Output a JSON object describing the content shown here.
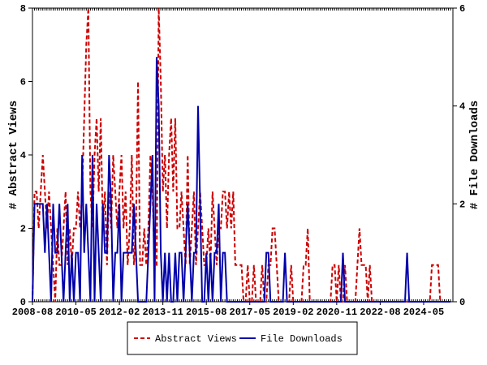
{
  "chart_data": {
    "type": "line",
    "y_label": "# Abstract Views",
    "y2_label": "# File Downloads",
    "categories": [
      "2008-08",
      "2008-09",
      "2008-10",
      "2008-11",
      "2008-12",
      "2009-01",
      "2009-02",
      "2009-03",
      "2009-04",
      "2009-05",
      "2009-06",
      "2009-07",
      "2009-08",
      "2009-09",
      "2009-10",
      "2009-11",
      "2009-12",
      "2010-01",
      "2010-02",
      "2010-03",
      "2010-04",
      "2010-05",
      "2010-06",
      "2010-07",
      "2010-08",
      "2010-09",
      "2010-10",
      "2010-11",
      "2010-12",
      "2011-01",
      "2011-02",
      "2011-03",
      "2011-04",
      "2011-05",
      "2011-06",
      "2011-07",
      "2011-08",
      "2011-09",
      "2011-10",
      "2011-11",
      "2011-12",
      "2012-01",
      "2012-02",
      "2012-03",
      "2012-04",
      "2012-05",
      "2012-06",
      "2012-07",
      "2012-08",
      "2012-09",
      "2012-10",
      "2012-11",
      "2012-12",
      "2013-01",
      "2013-02",
      "2013-03",
      "2013-04",
      "2013-05",
      "2013-06",
      "2013-07",
      "2013-08",
      "2013-09",
      "2013-10",
      "2013-11",
      "2013-12",
      "2014-01",
      "2014-02",
      "2014-03",
      "2014-04",
      "2014-05",
      "2014-06",
      "2014-07",
      "2014-08",
      "2014-09",
      "2014-10",
      "2014-11",
      "2014-12",
      "2015-01",
      "2015-02",
      "2015-03",
      "2015-04",
      "2015-05",
      "2015-06",
      "2015-07",
      "2015-08",
      "2015-09",
      "2015-10",
      "2015-11",
      "2015-12",
      "2016-01",
      "2016-02",
      "2016-03",
      "2016-04",
      "2016-05",
      "2016-06",
      "2016-07",
      "2016-08",
      "2016-09",
      "2016-10",
      "2016-11",
      "2016-12",
      "2017-01",
      "2017-02",
      "2017-03",
      "2017-04",
      "2017-05",
      "2017-06",
      "2017-07",
      "2017-08",
      "2017-09",
      "2017-10",
      "2017-11",
      "2017-12",
      "2018-01",
      "2018-02",
      "2018-03",
      "2018-04",
      "2018-05",
      "2018-06",
      "2018-07",
      "2018-08",
      "2018-09",
      "2018-10",
      "2018-11",
      "2018-12",
      "2019-01",
      "2019-02",
      "2019-03",
      "2019-04",
      "2019-05",
      "2019-06",
      "2019-07",
      "2019-08",
      "2019-09",
      "2019-10",
      "2019-11",
      "2019-12",
      "2020-01",
      "2020-02",
      "2020-03",
      "2020-04",
      "2020-05",
      "2020-06",
      "2020-07",
      "2020-08",
      "2020-09",
      "2020-10",
      "2020-11",
      "2020-12",
      "2021-01",
      "2021-02",
      "2021-03",
      "2021-04",
      "2021-05",
      "2021-06",
      "2021-07",
      "2021-08",
      "2021-09",
      "2021-10",
      "2021-11",
      "2021-12",
      "2022-01",
      "2022-02",
      "2022-03",
      "2022-04",
      "2022-05",
      "2022-06",
      "2022-07",
      "2022-08",
      "2022-09",
      "2022-10",
      "2022-11",
      "2022-12",
      "2023-01",
      "2023-02",
      "2023-03",
      "2023-04",
      "2023-05",
      "2023-06",
      "2023-07",
      "2023-08",
      "2023-09",
      "2023-10",
      "2023-11",
      "2023-12",
      "2024-01",
      "2024-02",
      "2024-03",
      "2024-04",
      "2024-05",
      "2024-06",
      "2024-07",
      "2024-08",
      "2024-09",
      "2024-10",
      "2024-11",
      "2024-12",
      "2025-01",
      "2025-02",
      "2025-03",
      "2025-04",
      "2025-05",
      "2025-06"
    ],
    "xticks": [
      "2008-08",
      "2010-05",
      "2012-02",
      "2013-11",
      "2015-08",
      "2017-05",
      "2019-02",
      "2020-11",
      "2022-08",
      "2024-05"
    ],
    "ylim": [
      0,
      8
    ],
    "yticks": [
      0,
      2,
      4,
      6,
      8
    ],
    "y2lim": [
      0,
      6
    ],
    "y2ticks": [
      0,
      2,
      4,
      6
    ],
    "legend": "bottom",
    "series": [
      {
        "name": "Abstract Views",
        "color": "#cc0000",
        "dash": true,
        "values": [
          0,
          3,
          3,
          2,
          3,
          4,
          3,
          2,
          3,
          2,
          1,
          0,
          2,
          1,
          1,
          2,
          3,
          1,
          2,
          1,
          2,
          2,
          3,
          2,
          3,
          5,
          7,
          8,
          3,
          2,
          4,
          5,
          3,
          5,
          2,
          3,
          1,
          3,
          2,
          4,
          3,
          2,
          3,
          4,
          2,
          3,
          1,
          2,
          4,
          1,
          2,
          6,
          1,
          1,
          2,
          1,
          2,
          4,
          3,
          1,
          1,
          8,
          6,
          3,
          4,
          2,
          4,
          5,
          3,
          5,
          2,
          2,
          3,
          2,
          1,
          4,
          1,
          2,
          3,
          1,
          2,
          3,
          2,
          1,
          1,
          2,
          1,
          3,
          2,
          1,
          2,
          2,
          3,
          3,
          2,
          3,
          2,
          3,
          1,
          1,
          1,
          1,
          0,
          0,
          1,
          0,
          0,
          1,
          0,
          0,
          0,
          1,
          0,
          0,
          1,
          1,
          2,
          2,
          1,
          0,
          0,
          0,
          0,
          0,
          0,
          1,
          0,
          0,
          0,
          0,
          0,
          1,
          1,
          2,
          0,
          0,
          0,
          0,
          0,
          0,
          0,
          0,
          0,
          0,
          0,
          1,
          1,
          0,
          1,
          0,
          0,
          1,
          0,
          0,
          0,
          0,
          0,
          1,
          2,
          1,
          1,
          1,
          0,
          1,
          0,
          0,
          0,
          0,
          0,
          0,
          0,
          0,
          0,
          0,
          0,
          0,
          0,
          0,
          0,
          0,
          0,
          0,
          0,
          0,
          0,
          0,
          0,
          0,
          0,
          0,
          0,
          0,
          0,
          1,
          1,
          1,
          1,
          0,
          0,
          0,
          0,
          0,
          0
        ]
      },
      {
        "name": "File Downloads",
        "color": "#0000aa",
        "dash": false,
        "axis": "y2",
        "values": [
          0,
          2,
          2,
          2,
          2,
          2,
          1,
          2,
          1,
          0,
          2,
          1,
          1,
          2,
          1,
          0,
          1,
          2,
          0,
          1,
          0,
          1,
          1,
          0,
          3,
          1,
          2,
          1,
          0,
          3,
          0,
          2,
          1,
          0,
          2,
          1,
          1,
          3,
          2,
          0,
          1,
          1,
          2,
          0,
          1,
          1,
          1,
          1,
          1,
          2,
          1,
          0,
          0,
          0,
          0,
          0,
          1,
          2,
          3,
          0,
          5,
          4,
          1,
          0,
          1,
          0,
          1,
          0,
          0,
          1,
          0,
          1,
          1,
          0,
          1,
          2,
          1,
          0,
          1,
          1,
          4,
          2,
          0,
          0,
          1,
          0,
          1,
          0,
          1,
          1,
          2,
          0,
          1,
          1,
          0,
          0,
          0,
          0,
          0,
          0,
          0,
          0,
          0,
          0,
          0,
          0,
          0,
          0,
          0,
          0,
          0,
          0,
          0,
          1,
          1,
          0,
          0,
          0,
          0,
          0,
          0,
          0,
          1,
          0,
          0,
          0,
          0,
          0,
          0,
          0,
          0,
          0,
          0,
          0,
          0,
          0,
          0,
          0,
          0,
          0,
          0,
          0,
          0,
          0,
          0,
          0,
          0,
          0,
          0,
          0,
          1,
          0,
          0,
          0,
          0,
          0,
          0,
          0,
          0,
          0,
          0,
          0,
          0,
          0,
          0,
          0,
          0,
          0,
          0,
          0,
          0,
          0,
          0,
          0,
          0,
          0,
          0,
          0,
          0,
          0,
          0,
          1,
          0,
          0,
          0,
          0,
          0,
          0,
          0,
          0,
          0,
          0,
          0,
          0,
          0,
          0,
          0,
          0,
          0,
          0,
          0,
          0,
          0
        ]
      }
    ]
  }
}
